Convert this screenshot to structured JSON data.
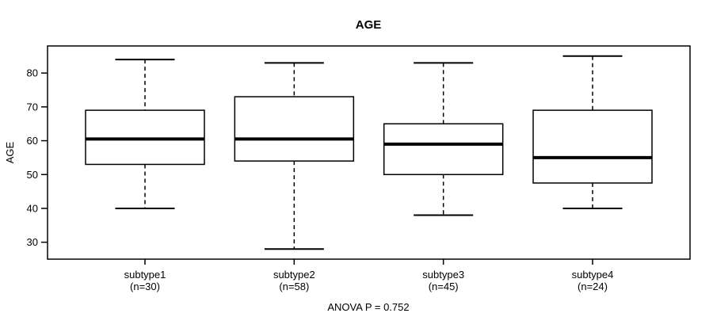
{
  "figure": {
    "background": "#ffffff",
    "line_color": "#000000",
    "text_color": "#000000"
  },
  "chart_data": {
    "type": "boxplot",
    "title": "AGE",
    "ylabel": "AGE",
    "xlabel": "",
    "caption": "ANOVA P = 0.752",
    "grid": false,
    "legend": "none",
    "yticks": [
      30,
      40,
      50,
      60,
      70,
      80
    ],
    "ylim": [
      25,
      88
    ],
    "categories": [
      "subtype1",
      "subtype2",
      "subtype3",
      "subtype4"
    ],
    "groups": [
      {
        "label": "subtype1",
        "sublabel": "(n=30)",
        "n": 30,
        "whisker_low": 40,
        "q1": 53,
        "median": 60.5,
        "q3": 69,
        "whisker_high": 84
      },
      {
        "label": "subtype2",
        "sublabel": "(n=58)",
        "n": 58,
        "whisker_low": 28,
        "q1": 54,
        "median": 60.5,
        "q3": 73,
        "whisker_high": 83
      },
      {
        "label": "subtype3",
        "sublabel": "(n=45)",
        "n": 45,
        "whisker_low": 38,
        "q1": 50,
        "median": 59,
        "q3": 65,
        "whisker_high": 83
      },
      {
        "label": "subtype4",
        "sublabel": "(n=24)",
        "n": 24,
        "whisker_low": 40,
        "q1": 47.5,
        "median": 55,
        "q3": 69,
        "whisker_high": 85
      }
    ]
  }
}
